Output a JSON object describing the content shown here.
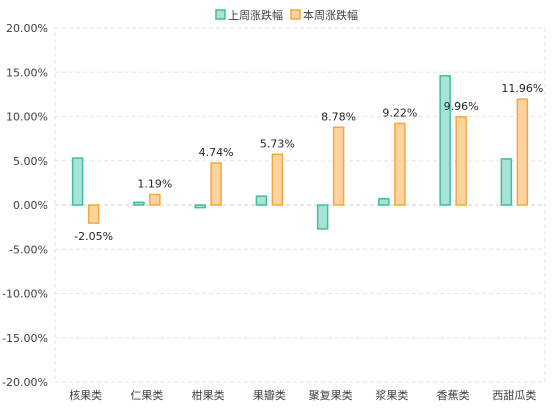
{
  "chart_data": {
    "type": "bar",
    "title": "",
    "xlabel": "",
    "ylabel": "",
    "categories": [
      "核果类",
      "仁果类",
      "柑果类",
      "果瓣类",
      "聚复果类",
      "浆果类",
      "香蕉类",
      "西甜瓜类"
    ],
    "series": [
      {
        "name": "上周涨跌幅",
        "values": [
          5.3,
          0.3,
          -0.3,
          1.0,
          -2.7,
          0.7,
          14.6,
          5.2
        ],
        "color": "#3DBFA0",
        "fill": "#A8E3D3",
        "show_labels": false
      },
      {
        "name": "本周涨跌幅",
        "values": [
          -2.05,
          1.19,
          4.74,
          5.73,
          8.78,
          9.22,
          9.96,
          11.96
        ],
        "labels": [
          "-2.05%",
          "1.19%",
          "4.74%",
          "5.73%",
          "8.78%",
          "9.22%",
          "9.96%",
          "11.96%"
        ],
        "color": "#F2A93B",
        "fill": "#FDD3A0",
        "show_labels": true
      }
    ],
    "ylim": [
      -20,
      20
    ],
    "yticks": [
      20,
      15,
      10,
      5,
      0,
      -5,
      -10,
      -15,
      -20
    ],
    "ytick_labels": [
      "20.00%",
      "15.00%",
      "10.00%",
      "5.00%",
      "0.00%",
      "-5.00%",
      "-10.00%",
      "-15.00%",
      "-20.00%"
    ],
    "grid": true,
    "legend_position": "top-center"
  }
}
